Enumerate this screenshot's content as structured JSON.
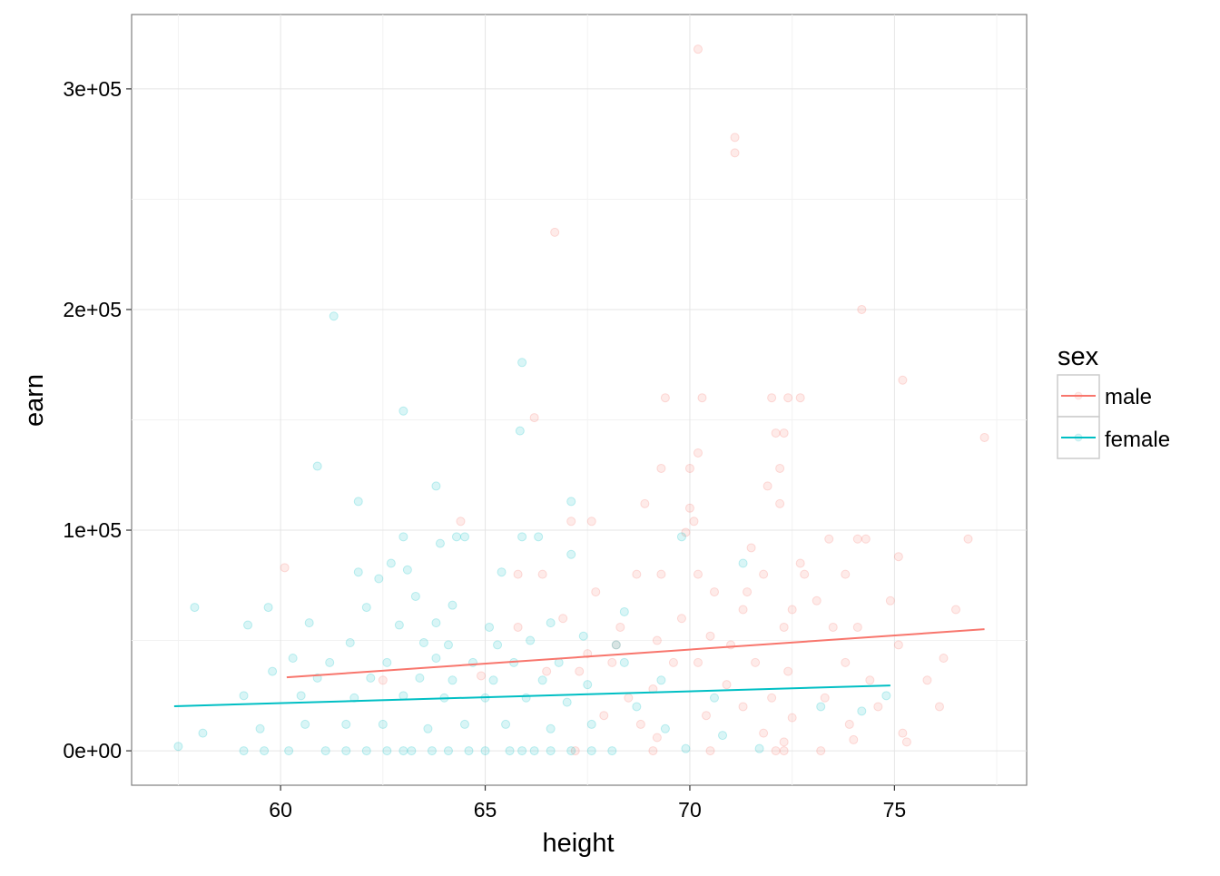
{
  "chart_data": {
    "type": "scatter",
    "xlabel": "height",
    "ylabel": "earn",
    "xlim": [
      56.36,
      78.23
    ],
    "ylim": [
      -15600,
      333700
    ],
    "x_ticks": [
      60,
      65,
      70,
      75
    ],
    "x_tick_labels": [
      "60",
      "65",
      "70",
      "75"
    ],
    "y_ticks": [
      0,
      100000,
      200000,
      300000
    ],
    "y_tick_labels": [
      "0e+00",
      "1e+05",
      "2e+05",
      "3e+05"
    ],
    "grid": true,
    "legend": {
      "title": "sex",
      "placement": "right",
      "entries": [
        "male",
        "female"
      ]
    },
    "series": [
      {
        "name": "male",
        "color": "#F8766D",
        "point_alpha": 0.15,
        "fit_line": [
          [
            60.15,
            33300
          ],
          [
            77.2,
            55100
          ]
        ],
        "points": [
          [
            70.2,
            318000
          ],
          [
            71.1,
            278000
          ],
          [
            71.1,
            271000
          ],
          [
            66.7,
            235000
          ],
          [
            74.2,
            200000
          ],
          [
            75.2,
            168000
          ],
          [
            77.2,
            142000
          ],
          [
            69.4,
            160000
          ],
          [
            70.3,
            160000
          ],
          [
            72,
            160000
          ],
          [
            72.7,
            160000
          ],
          [
            72.4,
            160000
          ],
          [
            66.2,
            151000
          ],
          [
            70.2,
            135000
          ],
          [
            72.1,
            144000
          ],
          [
            72.3,
            144000
          ],
          [
            69.3,
            128000
          ],
          [
            70,
            128000
          ],
          [
            72.2,
            128000
          ],
          [
            71.9,
            120000
          ],
          [
            72.2,
            112000
          ],
          [
            68.9,
            112000
          ],
          [
            70,
            110000
          ],
          [
            70.1,
            104000
          ],
          [
            64.4,
            104000
          ],
          [
            67.6,
            104000
          ],
          [
            67.1,
            104000
          ],
          [
            69.9,
            99000
          ],
          [
            73.4,
            96000
          ],
          [
            74.1,
            96000
          ],
          [
            74.3,
            96000
          ],
          [
            71.5,
            92000
          ],
          [
            76.8,
            96000
          ],
          [
            75.1,
            88000
          ],
          [
            60.1,
            83000
          ],
          [
            72.8,
            80000
          ],
          [
            71.8,
            80000
          ],
          [
            70.2,
            80000
          ],
          [
            69.3,
            80000
          ],
          [
            65.8,
            80000
          ],
          [
            66.4,
            80000
          ],
          [
            73.8,
            80000
          ],
          [
            72.7,
            85000
          ],
          [
            68.7,
            80000
          ],
          [
            67.7,
            72000
          ],
          [
            70.6,
            72000
          ],
          [
            71.4,
            72000
          ],
          [
            73.1,
            68000
          ],
          [
            74.9,
            68000
          ],
          [
            71.3,
            64000
          ],
          [
            72.5,
            64000
          ],
          [
            76.5,
            64000
          ],
          [
            69.8,
            60000
          ],
          [
            68.3,
            56000
          ],
          [
            73.5,
            56000
          ],
          [
            74.1,
            56000
          ],
          [
            72.3,
            56000
          ],
          [
            70.5,
            52000
          ],
          [
            69.2,
            50000
          ],
          [
            71,
            48000
          ],
          [
            75.1,
            48000
          ],
          [
            76.2,
            42000
          ],
          [
            73.8,
            40000
          ],
          [
            71.6,
            40000
          ],
          [
            70.2,
            40000
          ],
          [
            69.6,
            40000
          ],
          [
            68.1,
            40000
          ],
          [
            67.3,
            36000
          ],
          [
            72.4,
            36000
          ],
          [
            74.4,
            32000
          ],
          [
            75.8,
            32000
          ],
          [
            70.9,
            30000
          ],
          [
            69.1,
            28000
          ],
          [
            68.5,
            24000
          ],
          [
            72,
            24000
          ],
          [
            73.3,
            24000
          ],
          [
            74.6,
            20000
          ],
          [
            76.1,
            20000
          ],
          [
            71.3,
            20000
          ],
          [
            67.9,
            16000
          ],
          [
            70.4,
            16000
          ],
          [
            72.5,
            15000
          ],
          [
            68.8,
            12000
          ],
          [
            73.9,
            12000
          ],
          [
            75.2,
            8000
          ],
          [
            71.8,
            8000
          ],
          [
            69.2,
            6000
          ],
          [
            72.3,
            4000
          ],
          [
            74,
            5000
          ],
          [
            75.3,
            4000
          ],
          [
            67.2,
            0
          ],
          [
            69.1,
            0
          ],
          [
            70.5,
            0
          ],
          [
            72.1,
            0
          ],
          [
            72.3,
            0
          ],
          [
            73.2,
            0
          ],
          [
            65.8,
            56000
          ],
          [
            66.9,
            60000
          ],
          [
            68.2,
            48000
          ],
          [
            67.5,
            44000
          ],
          [
            66.5,
            36000
          ],
          [
            64.9,
            34000
          ],
          [
            62.5,
            32000
          ]
        ]
      },
      {
        "name": "female",
        "color": "#00BFC4",
        "point_alpha": 0.15,
        "fit_line": [
          [
            57.4,
            20200
          ],
          [
            74.9,
            29600
          ]
        ],
        "points": [
          [
            61.3,
            197000
          ],
          [
            65.9,
            176000
          ],
          [
            63,
            154000
          ],
          [
            65.85,
            145000
          ],
          [
            60.9,
            129000
          ],
          [
            63.8,
            120000
          ],
          [
            61.9,
            113000
          ],
          [
            67.1,
            113000
          ],
          [
            64.3,
            97000
          ],
          [
            63,
            97000
          ],
          [
            65.9,
            97000
          ],
          [
            66.3,
            97000
          ],
          [
            63.9,
            94000
          ],
          [
            67.1,
            89000
          ],
          [
            71.3,
            85000
          ],
          [
            62.7,
            85000
          ],
          [
            63.1,
            82000
          ],
          [
            61.9,
            81000
          ],
          [
            62.4,
            78000
          ],
          [
            65.4,
            81000
          ],
          [
            57.9,
            65000
          ],
          [
            59.7,
            65000
          ],
          [
            62.1,
            65000
          ],
          [
            63.3,
            70000
          ],
          [
            64.2,
            66000
          ],
          [
            59.2,
            57000
          ],
          [
            60.7,
            58000
          ],
          [
            62.9,
            57000
          ],
          [
            63.8,
            58000
          ],
          [
            65.1,
            56000
          ],
          [
            66.6,
            58000
          ],
          [
            61.7,
            49000
          ],
          [
            63.5,
            49000
          ],
          [
            64.1,
            48000
          ],
          [
            65.3,
            48000
          ],
          [
            66.1,
            50000
          ],
          [
            67.4,
            52000
          ],
          [
            68.2,
            48000
          ],
          [
            60.3,
            42000
          ],
          [
            61.2,
            40000
          ],
          [
            62.6,
            40000
          ],
          [
            63.8,
            42000
          ],
          [
            64.7,
            40000
          ],
          [
            65.7,
            40000
          ],
          [
            66.8,
            40000
          ],
          [
            68.4,
            40000
          ],
          [
            59.8,
            36000
          ],
          [
            60.9,
            33000
          ],
          [
            62.2,
            33000
          ],
          [
            63.4,
            33000
          ],
          [
            64.2,
            32000
          ],
          [
            65.2,
            32000
          ],
          [
            66.4,
            32000
          ],
          [
            67.5,
            30000
          ],
          [
            69.3,
            32000
          ],
          [
            59.1,
            25000
          ],
          [
            60.5,
            25000
          ],
          [
            61.8,
            24000
          ],
          [
            63,
            25000
          ],
          [
            64,
            24000
          ],
          [
            65,
            24000
          ],
          [
            66,
            24000
          ],
          [
            67,
            22000
          ],
          [
            68.7,
            20000
          ],
          [
            70.6,
            24000
          ],
          [
            73.2,
            20000
          ],
          [
            74.2,
            18000
          ],
          [
            74.8,
            25000
          ],
          [
            58.1,
            8000
          ],
          [
            59.5,
            10000
          ],
          [
            60.6,
            12000
          ],
          [
            61.6,
            12000
          ],
          [
            62.5,
            12000
          ],
          [
            63.6,
            10000
          ],
          [
            64.5,
            12000
          ],
          [
            65.5,
            12000
          ],
          [
            66.6,
            10000
          ],
          [
            67.6,
            12000
          ],
          [
            69.4,
            10000
          ],
          [
            57.5,
            2000
          ],
          [
            59.1,
            0
          ],
          [
            59.6,
            0
          ],
          [
            60.2,
            0
          ],
          [
            61.1,
            0
          ],
          [
            61.6,
            0
          ],
          [
            62.1,
            0
          ],
          [
            62.6,
            0
          ],
          [
            63.0,
            0
          ],
          [
            63.2,
            0
          ],
          [
            63.7,
            0
          ],
          [
            64.1,
            0
          ],
          [
            64.6,
            0
          ],
          [
            65.0,
            0
          ],
          [
            65.6,
            0
          ],
          [
            65.9,
            0
          ],
          [
            66.2,
            0
          ],
          [
            66.6,
            0
          ],
          [
            67.1,
            0
          ],
          [
            67.6,
            0
          ],
          [
            68.1,
            0
          ],
          [
            69.9,
            1000
          ],
          [
            71.7,
            1000
          ],
          [
            70.8,
            7000
          ],
          [
            69.8,
            97000
          ],
          [
            68.4,
            63000
          ],
          [
            64.5,
            97000
          ]
        ]
      }
    ]
  }
}
